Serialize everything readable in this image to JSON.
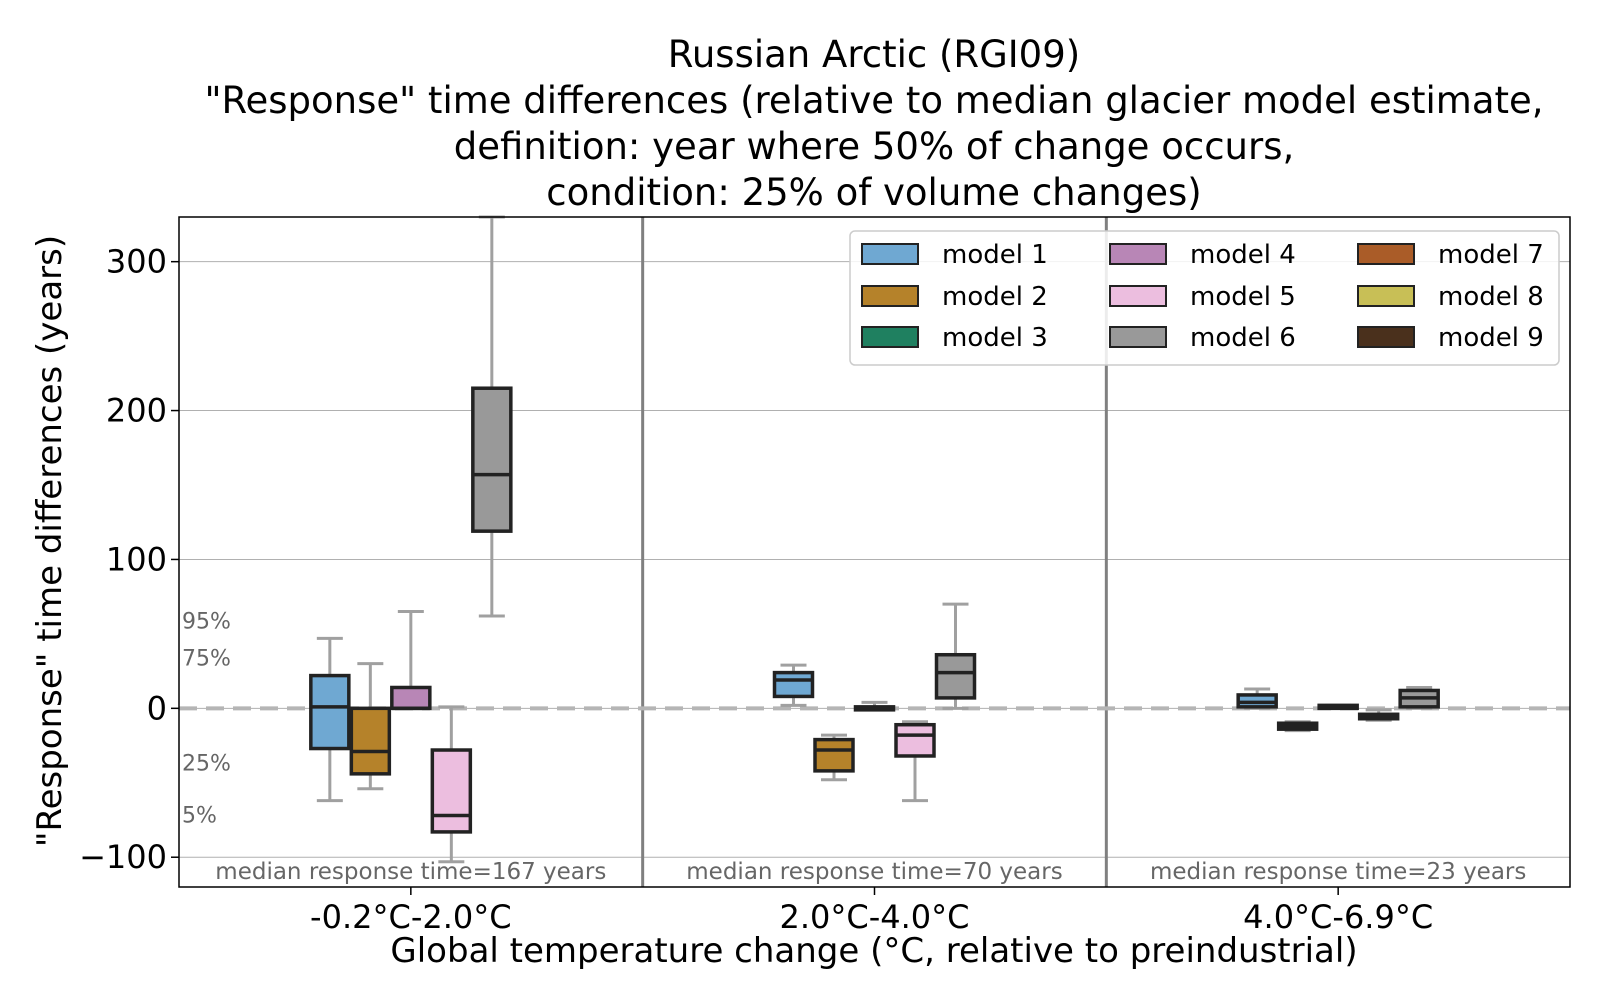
{
  "chart_data": {
    "type": "box",
    "title_lines": [
      "Russian Arctic (RGI09)",
      "\"Response\" time differences (relative to median glacier model estimate,",
      "definition: year where 50% of change occurs,",
      "condition: 25% of volume changes)"
    ],
    "xlabel": "Global temperature change (°C, relative to preindustrial)",
    "ylabel": "\"Response\" time differences (years)",
    "ylim": [
      -120,
      330
    ],
    "yticks": [
      -100,
      0,
      100,
      200,
      300
    ],
    "ytick_labels": [
      "−100",
      "0",
      "100",
      "200",
      "300"
    ],
    "grid": true,
    "legend_position": "top-right",
    "percentile_labels": [
      "95%",
      "75%",
      "25%",
      "5%"
    ],
    "zero_line": 0,
    "groups": [
      {
        "label": "-0.2°C-2.0°C",
        "annotation": "median response time=167 years",
        "boxes": [
          {
            "model": "model 1",
            "p5": -62,
            "p25": -27,
            "median": 1,
            "p75": 22,
            "p95": 47
          },
          {
            "model": "model 2",
            "p5": -54,
            "p25": -44,
            "median": -29,
            "p75": 0,
            "p95": 30
          },
          {
            "model": "model 4",
            "p5": 0,
            "p25": 0,
            "median": 0,
            "p75": 14,
            "p95": 65
          },
          {
            "model": "model 5",
            "p5": -103,
            "p25": -83,
            "median": -72,
            "p75": -28,
            "p95": 1
          },
          {
            "model": "model 6",
            "p5": 62,
            "p25": 119,
            "median": 157,
            "p75": 215,
            "p95": 330
          }
        ]
      },
      {
        "label": "2.0°C-4.0°C",
        "annotation": "median response time=70 years",
        "boxes": [
          {
            "model": "model 1",
            "p5": 2,
            "p25": 8,
            "median": 19,
            "p75": 24,
            "p95": 29
          },
          {
            "model": "model 2",
            "p5": -48,
            "p25": -42,
            "median": -28,
            "p75": -21,
            "p95": -18
          },
          {
            "model": "model 4",
            "p5": -1,
            "p25": 0,
            "median": 0,
            "p75": 1,
            "p95": 4
          },
          {
            "model": "model 5",
            "p5": -62,
            "p25": -32,
            "median": -18,
            "p75": -11,
            "p95": -9
          },
          {
            "model": "model 6",
            "p5": 0,
            "p25": 7,
            "median": 24,
            "p75": 36,
            "p95": 70
          }
        ]
      },
      {
        "label": "4.0°C-6.9°C",
        "annotation": "median response time=23 years",
        "boxes": [
          {
            "model": "model 1",
            "p5": 0,
            "p25": 1,
            "median": 4,
            "p75": 9,
            "p95": 13
          },
          {
            "model": "model 2",
            "p5": -15,
            "p25": -14,
            "median": -12,
            "p75": -10,
            "p95": -9
          },
          {
            "model": "model 4",
            "p5": 0,
            "p25": 0,
            "median": 1,
            "p75": 2,
            "p95": 2
          },
          {
            "model": "model 5",
            "p5": -8,
            "p25": -7,
            "median": -6,
            "p75": -4,
            "p95": -1
          },
          {
            "model": "model 6",
            "p5": 0,
            "p25": 1,
            "median": 7,
            "p75": 12,
            "p95": 14
          }
        ]
      }
    ],
    "series": [
      {
        "name": "model 1",
        "color": "#6fa8d2"
      },
      {
        "name": "model 2",
        "color": "#b5822a"
      },
      {
        "name": "model 3",
        "color": "#1f8060"
      },
      {
        "name": "model 4",
        "color": "#b886b6"
      },
      {
        "name": "model 5",
        "color": "#ecbedf"
      },
      {
        "name": "model 6",
        "color": "#999999"
      },
      {
        "name": "model 7",
        "color": "#aa5c28"
      },
      {
        "name": "model 8",
        "color": "#c8bf56"
      },
      {
        "name": "model 9",
        "color": "#4a301c"
      }
    ]
  }
}
